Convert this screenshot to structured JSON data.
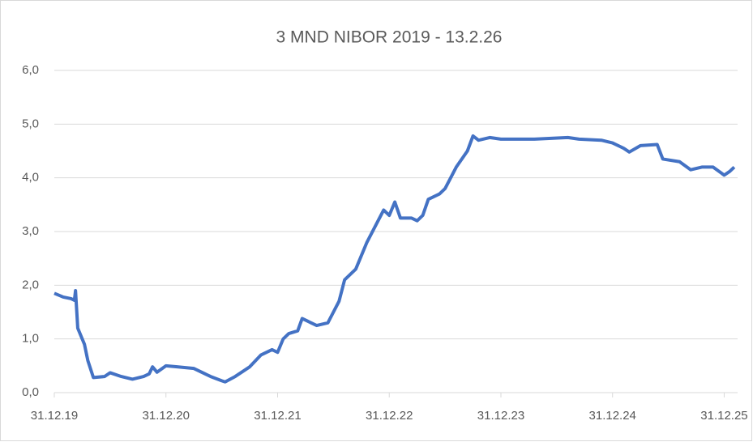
{
  "chart_data": {
    "type": "line",
    "title": "3 MND NIBOR 2019 - 13.2.26",
    "series": [
      {
        "color": "#4472c4",
        "x": [
          2020.0,
          2020.08,
          2020.15,
          2020.18,
          2020.19,
          2020.21,
          2020.27,
          2020.3,
          2020.35,
          2020.45,
          2020.5,
          2020.6,
          2020.7,
          2020.8,
          2020.85,
          2020.88,
          2020.92,
          2021.0,
          2021.1,
          2021.25,
          2021.4,
          2021.5,
          2021.53,
          2021.62,
          2021.75,
          2021.85,
          2021.95,
          2022.0,
          2022.05,
          2022.1,
          2022.18,
          2022.22,
          2022.3,
          2022.35,
          2022.45,
          2022.5,
          2022.55,
          2022.6,
          2022.7,
          2022.8,
          2022.9,
          2022.95,
          2023.0,
          2023.05,
          2023.1,
          2023.2,
          2023.25,
          2023.3,
          2023.35,
          2023.45,
          2023.5,
          2023.6,
          2023.7,
          2023.75,
          2023.8,
          2023.9,
          2024.0,
          2024.3,
          2024.6,
          2024.7,
          2024.9,
          2025.0,
          2025.1,
          2025.15,
          2025.25,
          2025.4,
          2025.45,
          2025.6,
          2025.7,
          2025.8,
          2025.9,
          2026.0,
          2026.05,
          2026.09
        ],
        "values": [
          1.85,
          1.78,
          1.75,
          1.72,
          1.9,
          1.2,
          0.9,
          0.6,
          0.28,
          0.3,
          0.37,
          0.3,
          0.25,
          0.3,
          0.35,
          0.48,
          0.38,
          0.5,
          0.48,
          0.45,
          0.3,
          0.22,
          0.2,
          0.3,
          0.48,
          0.7,
          0.8,
          0.75,
          1.0,
          1.1,
          1.15,
          1.38,
          1.3,
          1.25,
          1.3,
          1.5,
          1.7,
          2.1,
          2.3,
          2.8,
          3.2,
          3.4,
          3.3,
          3.55,
          3.25,
          3.25,
          3.2,
          3.3,
          3.6,
          3.7,
          3.8,
          4.2,
          4.5,
          4.78,
          4.7,
          4.75,
          4.72,
          4.72,
          4.75,
          4.72,
          4.7,
          4.65,
          4.55,
          4.48,
          4.6,
          4.62,
          4.35,
          4.3,
          4.15,
          4.2,
          4.2,
          4.05,
          4.12,
          4.2
        ]
      }
    ],
    "xlim": [
      2020.0,
      2026.12
    ],
    "xticks": [
      {
        "value": 2020,
        "label": "31.12.19"
      },
      {
        "value": 2021,
        "label": "31.12.20"
      },
      {
        "value": 2022,
        "label": "31.12.21"
      },
      {
        "value": 2023,
        "label": "31.12.22"
      },
      {
        "value": 2024,
        "label": "31.12.23"
      },
      {
        "value": 2025,
        "label": "31.12.24"
      },
      {
        "value": 2026,
        "label": "31.12.25"
      }
    ],
    "ylim": [
      0,
      6
    ],
    "yticks": [
      {
        "value": 0,
        "label": "0,0"
      },
      {
        "value": 1,
        "label": "1,0"
      },
      {
        "value": 2,
        "label": "2,0"
      },
      {
        "value": 3,
        "label": "3,0"
      },
      {
        "value": 4,
        "label": "4,0"
      },
      {
        "value": 5,
        "label": "5,0"
      },
      {
        "value": 6,
        "label": "6,0"
      }
    ],
    "grid": true
  }
}
